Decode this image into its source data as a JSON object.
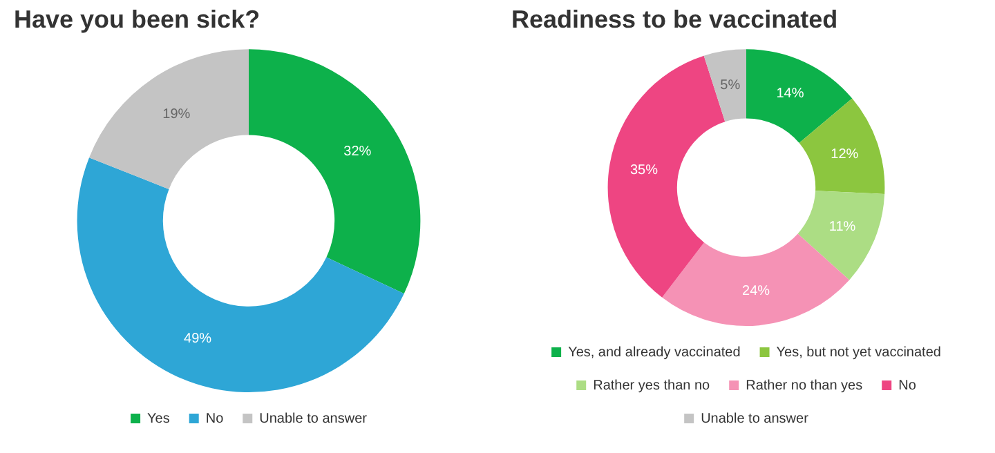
{
  "chart_data": [
    {
      "type": "donut",
      "title": "Have you been sick?",
      "categories": [
        "Yes",
        "No",
        "Unable to answer"
      ],
      "values": [
        32,
        49,
        19
      ],
      "value_labels": [
        "32%",
        "49%",
        "19%"
      ],
      "colors": [
        "#0db14b",
        "#2ea6d6",
        "#c4c4c4"
      ],
      "legend": "bottom"
    },
    {
      "type": "donut",
      "title": "Readiness to be vaccinated",
      "categories": [
        "Yes, and already vaccinated",
        "Yes, but not yet vaccinated",
        "Rather yes than no",
        "Rather no than yes",
        "No",
        "Unable to answer"
      ],
      "values": [
        14,
        12,
        11,
        24,
        35,
        5
      ],
      "value_labels": [
        "14%",
        "12%",
        "11%",
        "24%",
        "35%",
        "5%"
      ],
      "colors": [
        "#0db14b",
        "#8cc63f",
        "#acdd84",
        "#f592b5",
        "#ee4582",
        "#c4c4c4"
      ],
      "legend": "bottom"
    }
  ]
}
